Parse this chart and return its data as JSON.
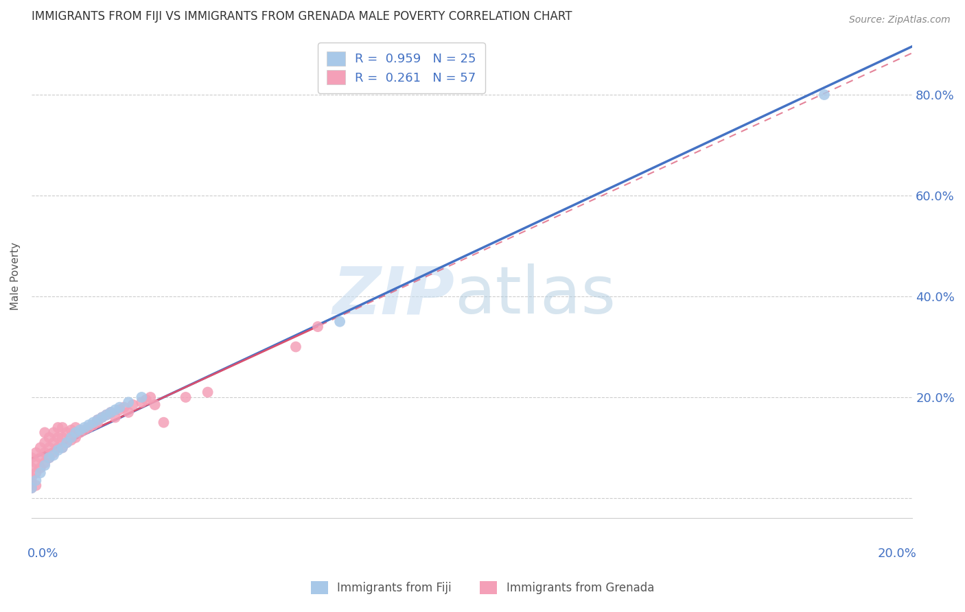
{
  "title": "IMMIGRANTS FROM FIJI VS IMMIGRANTS FROM GRENADA MALE POVERTY CORRELATION CHART",
  "source": "Source: ZipAtlas.com",
  "ylabel": "Male Poverty",
  "right_ytick_labels": [
    "",
    "20.0%",
    "40.0%",
    "60.0%",
    "80.0%"
  ],
  "right_ytick_positions": [
    0.0,
    0.2,
    0.4,
    0.6,
    0.8
  ],
  "fiji_color": "#a8c8e8",
  "fiji_color_line": "#4472c4",
  "grenada_color": "#f4a0b8",
  "grenada_color_line": "#d94f6e",
  "fiji_R": 0.959,
  "fiji_N": 25,
  "grenada_R": 0.261,
  "grenada_N": 57,
  "xlim": [
    0.0,
    0.2
  ],
  "ylim": [
    -0.04,
    0.92
  ],
  "fiji_x": [
    0.0,
    0.001,
    0.002,
    0.003,
    0.004,
    0.005,
    0.006,
    0.007,
    0.008,
    0.009,
    0.01,
    0.011,
    0.012,
    0.013,
    0.014,
    0.015,
    0.016,
    0.017,
    0.018,
    0.019,
    0.02,
    0.022,
    0.025,
    0.07,
    0.18
  ],
  "fiji_y": [
    0.02,
    0.035,
    0.05,
    0.065,
    0.08,
    0.085,
    0.095,
    0.1,
    0.11,
    0.12,
    0.13,
    0.135,
    0.14,
    0.145,
    0.15,
    0.155,
    0.16,
    0.165,
    0.17,
    0.175,
    0.18,
    0.19,
    0.2,
    0.35,
    0.8
  ],
  "grenada_x": [
    0.0,
    0.0,
    0.0,
    0.0,
    0.0,
    0.001,
    0.001,
    0.001,
    0.001,
    0.002,
    0.002,
    0.002,
    0.003,
    0.003,
    0.003,
    0.003,
    0.004,
    0.004,
    0.004,
    0.005,
    0.005,
    0.005,
    0.006,
    0.006,
    0.006,
    0.007,
    0.007,
    0.007,
    0.008,
    0.008,
    0.009,
    0.009,
    0.01,
    0.01,
    0.011,
    0.012,
    0.013,
    0.014,
    0.015,
    0.015,
    0.016,
    0.017,
    0.018,
    0.019,
    0.02,
    0.021,
    0.022,
    0.023,
    0.025,
    0.026,
    0.027,
    0.028,
    0.03,
    0.035,
    0.04,
    0.06,
    0.065
  ],
  "grenada_y": [
    0.02,
    0.03,
    0.04,
    0.06,
    0.08,
    0.025,
    0.05,
    0.07,
    0.09,
    0.06,
    0.08,
    0.1,
    0.07,
    0.09,
    0.11,
    0.13,
    0.08,
    0.1,
    0.12,
    0.09,
    0.11,
    0.13,
    0.1,
    0.12,
    0.14,
    0.1,
    0.12,
    0.14,
    0.11,
    0.13,
    0.115,
    0.135,
    0.12,
    0.14,
    0.13,
    0.135,
    0.14,
    0.145,
    0.15,
    0.155,
    0.16,
    0.165,
    0.17,
    0.16,
    0.175,
    0.18,
    0.17,
    0.185,
    0.19,
    0.195,
    0.2,
    0.185,
    0.15,
    0.2,
    0.21,
    0.3,
    0.34
  ],
  "background_color": "#ffffff",
  "grid_color": "#cccccc",
  "title_color": "#333333",
  "axis_label_color": "#4472c4",
  "legend_label_color": "#4472c4"
}
